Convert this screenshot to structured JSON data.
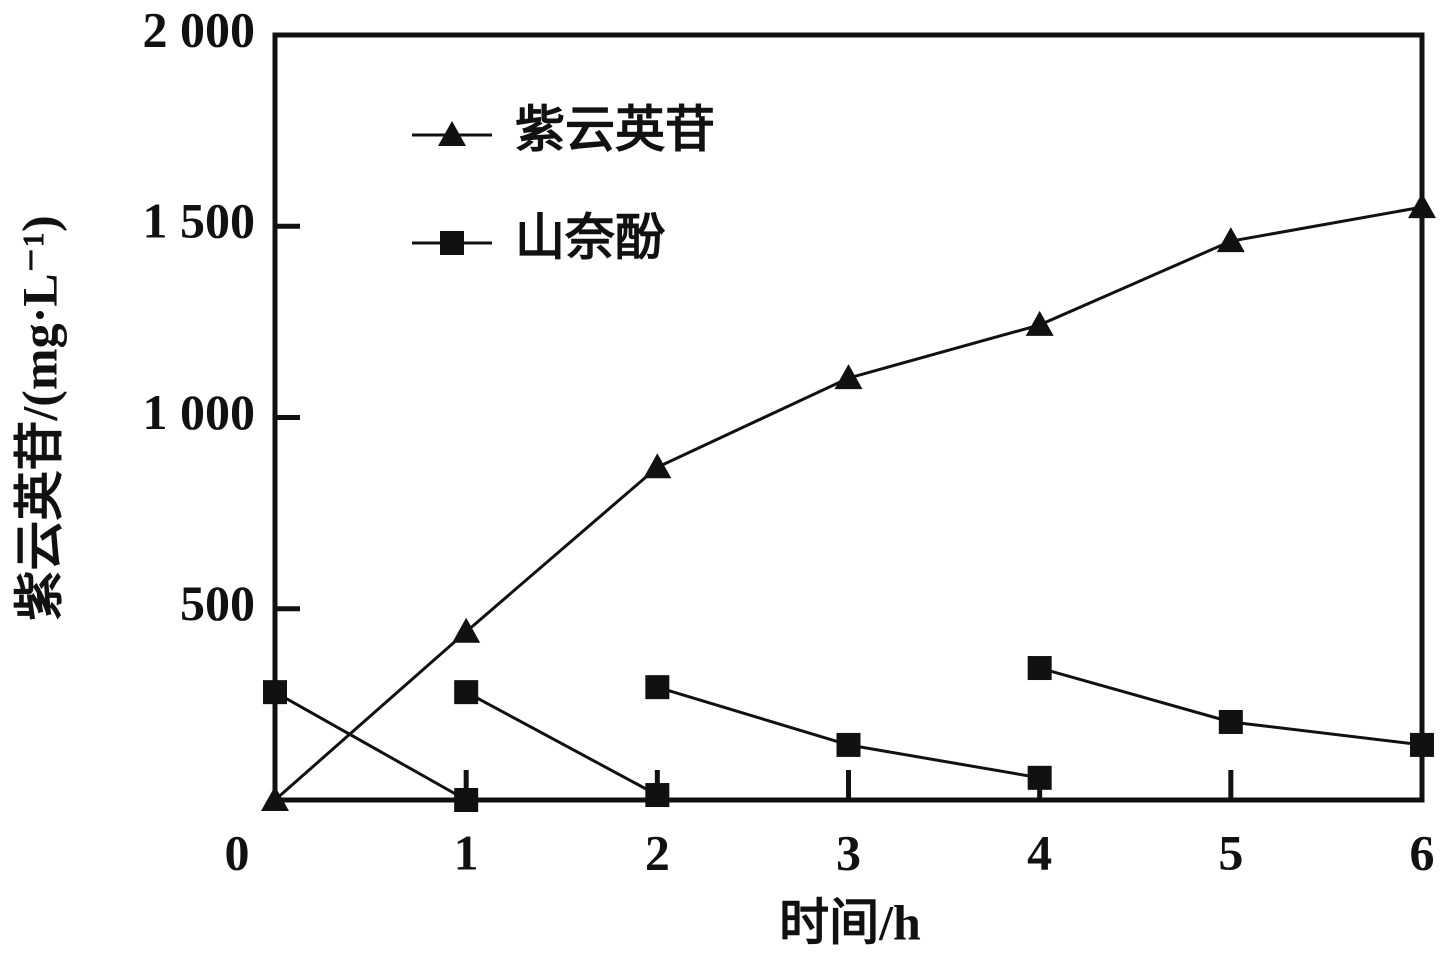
{
  "chart_data": {
    "type": "line",
    "x_label": "时间/h",
    "y_label": "紫云英苷/(mg·L⁻¹)",
    "xlim": [
      0,
      6
    ],
    "xticks": [
      0,
      1,
      2,
      3,
      4,
      5,
      6
    ],
    "ylim": [
      0,
      2000
    ],
    "yticks": [
      {
        "value": 500,
        "label": "500"
      },
      {
        "value": 1000,
        "label": "1 000"
      },
      {
        "value": 1500,
        "label": "1 500"
      },
      {
        "value": 2000,
        "label": "2 000"
      }
    ],
    "legend": "upper left",
    "series": [
      {
        "name": "紫云英苷",
        "color": "#111111",
        "marker": "triangle",
        "x": [
          0,
          1,
          2,
          3,
          4,
          5,
          6
        ],
        "values": [
          0,
          440,
          870,
          1103,
          1242,
          1461,
          1550
        ]
      },
      {
        "name": "山奈酚",
        "color": "#111111",
        "marker": "square",
        "x": [
          0,
          1,
          1,
          1,
          2,
          2,
          2,
          3,
          4,
          4,
          4,
          5,
          6
        ],
        "values": [
          282,
          0,
          null,
          282,
          13,
          null,
          295,
          144,
          58,
          null,
          345,
          204,
          144
        ]
      }
    ]
  }
}
